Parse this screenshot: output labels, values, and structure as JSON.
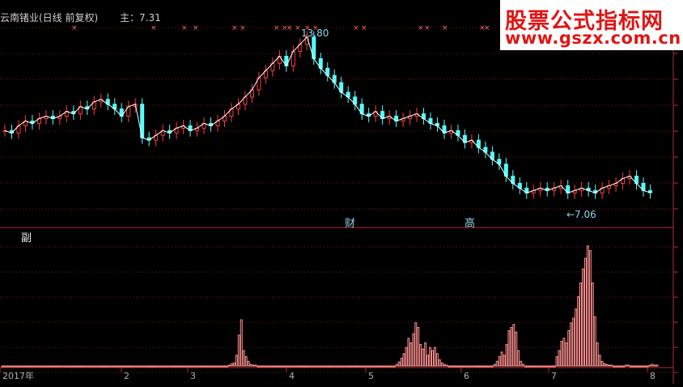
{
  "header": {
    "title": "云南锗业(日线 前复权)",
    "main_label": "主：7.31"
  },
  "sub_panel": {
    "label": "副"
  },
  "annotations": {
    "high_label": "13.80",
    "low_label": "←7.06",
    "event_1": "财",
    "event_2": "高"
  },
  "watermark": {
    "line1": "股票公式指标网",
    "line2": "www.gszx.com.cn"
  },
  "colors": {
    "up": "#ff3c3c",
    "down": "#54ffff",
    "ma": "#ffffff",
    "grid": "#7a1a1a",
    "volume_bar": "#ff8f8f",
    "marker": "#ff6666"
  },
  "chart_data": [
    {
      "type": "line",
      "title": "云南锗业(日线 前复权)",
      "description_series": "close price (approx, read from candles)",
      "x_tick_labels": [
        "2017年",
        "2",
        "3",
        "4",
        "5",
        "6",
        "7",
        "8"
      ],
      "series": [
        {
          "values": [
            9.9,
            9.8,
            10.1,
            10.3,
            10.2,
            10.4,
            10.5,
            10.4,
            10.5,
            10.7,
            10.6,
            10.9,
            10.8,
            11.1,
            11.2,
            11.0,
            10.8,
            10.5,
            10.9,
            11.0,
            9.6,
            9.5,
            9.7,
            9.9,
            9.8,
            10.0,
            10.1,
            9.9,
            10.0,
            10.2,
            10.1,
            10.3,
            10.5,
            10.8,
            11.0,
            11.3,
            11.6,
            12.1,
            12.4,
            12.7,
            13.0,
            12.6,
            13.2,
            13.5,
            13.8,
            12.9,
            12.5,
            12.2,
            11.9,
            11.5,
            11.3,
            11.0,
            10.6,
            10.5,
            10.7,
            10.4,
            10.5,
            10.3,
            10.4,
            10.5,
            10.6,
            10.4,
            10.2,
            10.1,
            9.8,
            9.9,
            9.7,
            9.4,
            9.5,
            9.2,
            9.0,
            8.7,
            8.5,
            8.0,
            7.7,
            7.5,
            7.3,
            7.4,
            7.5,
            7.4,
            7.5,
            7.6,
            7.3,
            7.4,
            7.5,
            7.4,
            7.3,
            7.5,
            7.6,
            7.7,
            7.9,
            8.0,
            7.7,
            7.4,
            7.31
          ]
        }
      ],
      "annotations": [
        {
          "text": "13.80",
          "kind": "high"
        },
        {
          "text": "←7.06",
          "kind": "low"
        },
        {
          "text": "财"
        },
        {
          "text": "高"
        }
      ]
    },
    {
      "type": "bar",
      "title": "副",
      "description_series": "indicator histogram (relative heights)",
      "values": [
        0,
        0,
        0,
        0,
        0,
        0,
        0,
        0,
        0,
        0,
        0,
        0,
        0,
        0,
        0,
        0,
        0,
        0,
        0,
        0,
        0,
        0,
        0,
        0,
        0,
        0,
        0,
        0,
        0,
        0,
        0,
        0,
        0,
        0,
        0,
        0,
        0,
        0,
        0,
        0,
        0,
        0,
        0,
        0,
        0,
        0,
        0,
        0,
        0,
        0,
        0,
        0,
        0,
        0,
        0,
        0,
        0,
        0,
        0,
        0,
        0,
        0,
        0,
        0,
        0,
        0,
        0,
        0,
        0,
        0,
        0,
        0,
        0,
        0,
        0,
        0,
        0,
        0,
        0,
        0,
        0,
        0,
        0,
        0,
        0,
        0,
        0,
        0,
        0,
        0,
        0,
        0,
        0,
        0,
        0,
        1,
        3,
        4,
        14,
        40,
        60,
        20,
        12,
        6,
        2,
        1,
        1,
        0,
        0,
        0,
        0,
        0,
        0,
        0,
        0,
        0,
        0,
        0,
        0,
        0,
        0,
        0,
        0,
        0,
        0,
        0,
        0,
        0,
        0,
        0,
        0,
        0,
        0,
        0,
        0,
        0,
        0,
        0,
        0,
        0,
        0,
        0,
        0,
        0,
        0,
        0,
        0,
        0,
        0,
        0,
        0,
        0,
        0,
        0,
        0,
        0,
        0,
        0,
        0,
        0,
        0,
        0,
        0,
        0,
        0,
        2,
        5,
        10,
        16,
        24,
        36,
        30,
        42,
        56,
        50,
        28,
        22,
        30,
        14,
        24,
        20,
        24,
        16,
        8,
        4,
        2,
        1,
        0,
        0,
        0,
        0,
        0,
        0,
        0,
        0,
        0,
        0,
        0,
        0,
        0,
        0,
        0,
        0,
        0,
        0,
        0,
        2,
        6,
        12,
        18,
        14,
        28,
        46,
        50,
        54,
        44,
        20,
        6,
        2,
        0,
        0,
        0,
        0,
        0,
        0,
        0,
        0,
        0,
        0,
        0,
        0,
        0,
        12,
        20,
        32,
        36,
        30,
        46,
        56,
        62,
        74,
        90,
        108,
        126,
        140,
        156,
        150,
        108,
        64,
        30,
        14,
        6,
        3,
        2,
        1,
        1,
        0,
        0,
        0,
        0,
        0,
        1,
        1,
        0,
        0,
        0,
        0,
        0,
        0,
        0,
        0,
        1,
        2,
        1,
        1
      ]
    }
  ]
}
